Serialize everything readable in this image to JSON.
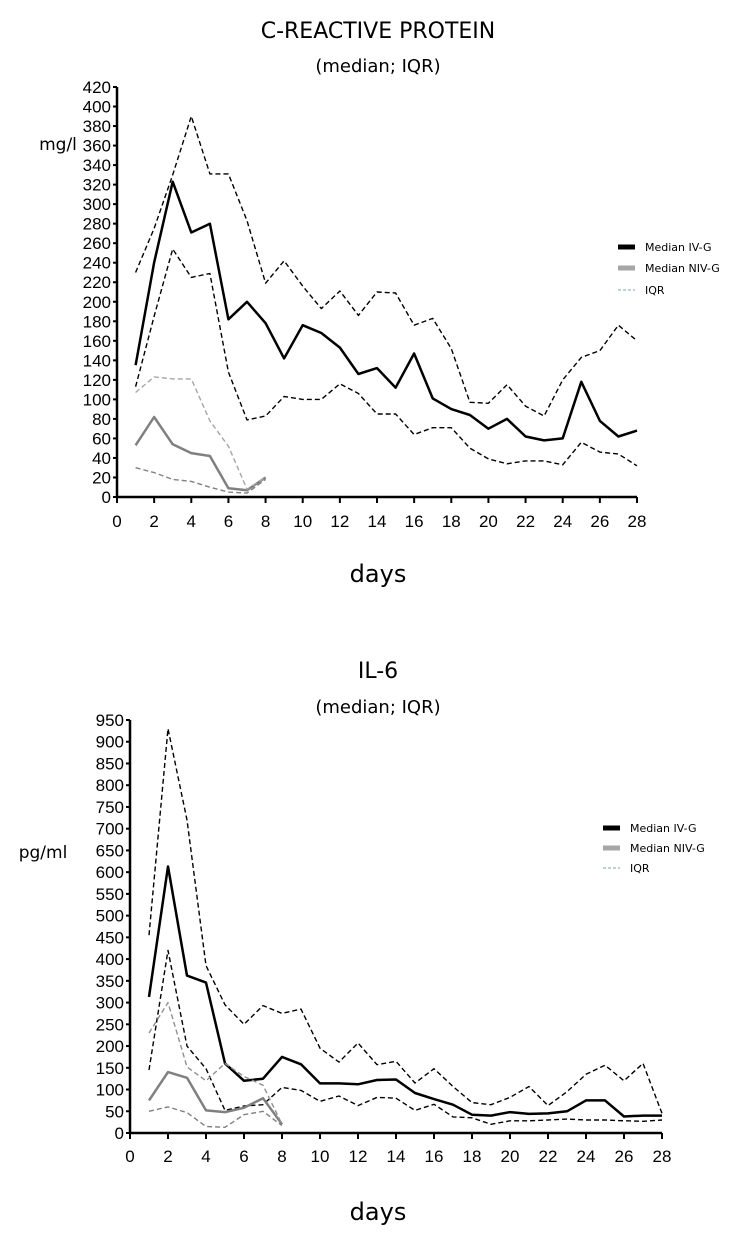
{
  "chart_data": [
    {
      "type": "line",
      "title": "C-REACTIVE PROTEIN",
      "subtitle": "(median; IQR)",
      "xlabel": "days",
      "ylabel": "mg/l",
      "xlim": [
        0,
        28
      ],
      "ylim": [
        0,
        420
      ],
      "xticks": [
        0,
        2,
        4,
        6,
        8,
        10,
        12,
        14,
        16,
        18,
        20,
        22,
        24,
        26,
        28
      ],
      "yticks": [
        0,
        20,
        40,
        60,
        80,
        100,
        120,
        140,
        160,
        180,
        200,
        220,
        240,
        260,
        280,
        300,
        320,
        340,
        360,
        380,
        400,
        420
      ],
      "grid": false,
      "legend_position": "right",
      "legend": [
        "Median IV-G",
        "Median NIV-G",
        "IQR"
      ],
      "series": [
        {
          "name": "Median IV-G",
          "style": "solid",
          "color": "#000000",
          "x": [
            1,
            2,
            3,
            4,
            5,
            6,
            7,
            8,
            9,
            10,
            11,
            12,
            13,
            14,
            15,
            16,
            17,
            18,
            19,
            20,
            21,
            22,
            23,
            24,
            25,
            26,
            27,
            28
          ],
          "values": [
            135,
            240,
            323,
            271,
            280,
            182,
            200,
            178,
            142,
            176,
            168,
            153,
            126,
            132,
            112,
            147,
            101,
            90,
            84,
            70,
            80,
            62,
            58,
            60,
            118,
            78,
            62,
            68
          ]
        },
        {
          "name": "IQR IV-G upper",
          "style": "dashed",
          "color": "#000000",
          "x": [
            1,
            2,
            3,
            4,
            5,
            6,
            7,
            8,
            9,
            10,
            11,
            12,
            13,
            14,
            15,
            16,
            17,
            18,
            19,
            20,
            21,
            22,
            23,
            24,
            25,
            26,
            27,
            28
          ],
          "values": [
            230,
            275,
            330,
            390,
            331,
            331,
            283,
            219,
            242,
            216,
            193,
            211,
            186,
            210,
            209,
            176,
            183,
            152,
            97,
            96,
            115,
            93,
            83,
            120,
            143,
            150,
            176,
            160
          ]
        },
        {
          "name": "IQR IV-G lower",
          "style": "dashed",
          "color": "#000000",
          "x": [
            1,
            2,
            3,
            4,
            5,
            6,
            7,
            8,
            9,
            10,
            11,
            12,
            13,
            14,
            15,
            16,
            17,
            18,
            19,
            20,
            21,
            22,
            23,
            24,
            25,
            26,
            27,
            28
          ],
          "values": [
            113,
            185,
            254,
            225,
            229,
            128,
            79,
            83,
            103,
            100,
            100,
            116,
            106,
            85,
            85,
            64,
            71,
            71,
            50,
            39,
            34,
            37,
            37,
            33,
            56,
            46,
            44,
            32
          ]
        },
        {
          "name": "Median NIV-G",
          "style": "solid",
          "color": "#808080",
          "x": [
            1,
            2,
            3,
            4,
            5,
            6,
            7,
            8
          ],
          "values": [
            53,
            82,
            54,
            45,
            42,
            9,
            7,
            20
          ]
        },
        {
          "name": "IQR NIV-G upper",
          "style": "dashed",
          "color": "#a6a6a6",
          "x": [
            1,
            2,
            3,
            4,
            5,
            6,
            7,
            8
          ],
          "values": [
            107,
            123,
            121,
            121,
            78,
            52,
            8,
            20
          ]
        },
        {
          "name": "IQR NIV-G lower",
          "style": "dashed",
          "color": "#808080",
          "x": [
            1,
            2,
            3,
            4,
            5,
            6,
            7,
            8
          ],
          "values": [
            30,
            25,
            18,
            16,
            10,
            5,
            4,
            18
          ]
        }
      ]
    },
    {
      "type": "line",
      "title": "IL-6",
      "subtitle": "(median; IQR)",
      "xlabel": "days",
      "ylabel": "pg/ml",
      "xlim": [
        0,
        28
      ],
      "ylim": [
        0,
        950
      ],
      "xticks": [
        0,
        2,
        4,
        6,
        8,
        10,
        12,
        14,
        16,
        18,
        20,
        22,
        24,
        26,
        28
      ],
      "yticks": [
        0,
        50,
        100,
        150,
        200,
        250,
        300,
        350,
        400,
        450,
        500,
        550,
        600,
        650,
        700,
        750,
        800,
        850,
        900,
        950
      ],
      "grid": false,
      "legend_position": "right",
      "legend": [
        "Median IV-G",
        "Median NIV-G",
        "IQR"
      ],
      "series": [
        {
          "name": "Median IV-G",
          "style": "solid",
          "color": "#000000",
          "x": [
            1,
            2,
            3,
            4,
            5,
            6,
            7,
            8,
            9,
            10,
            11,
            12,
            13,
            14,
            15,
            16,
            17,
            18,
            19,
            20,
            21,
            22,
            23,
            24,
            25,
            26,
            27,
            28
          ],
          "values": [
            313,
            613,
            362,
            346,
            160,
            120,
            125,
            175,
            158,
            114,
            114,
            112,
            122,
            123,
            92,
            78,
            65,
            42,
            40,
            48,
            44,
            45,
            50,
            75,
            75,
            38,
            40,
            40
          ]
        },
        {
          "name": "IQR IV-G upper",
          "style": "dashed",
          "color": "#000000",
          "x": [
            1,
            2,
            3,
            4,
            5,
            6,
            7,
            8,
            9,
            10,
            11,
            12,
            13,
            14,
            15,
            16,
            17,
            18,
            19,
            20,
            21,
            22,
            23,
            24,
            25,
            26,
            27,
            28
          ],
          "values": [
            455,
            930,
            720,
            385,
            295,
            250,
            293,
            275,
            285,
            195,
            163,
            207,
            157,
            165,
            115,
            148,
            107,
            70,
            65,
            82,
            107,
            63,
            95,
            135,
            156,
            120,
            160,
            45
          ]
        },
        {
          "name": "IQR IV-G lower",
          "style": "dashed",
          "color": "#000000",
          "x": [
            1,
            2,
            3,
            4,
            5,
            6,
            7,
            8,
            9,
            10,
            11,
            12,
            13,
            14,
            15,
            16,
            17,
            18,
            19,
            20,
            21,
            22,
            23,
            24,
            25,
            26,
            27,
            28
          ],
          "values": [
            145,
            420,
            200,
            148,
            52,
            62,
            65,
            105,
            98,
            73,
            85,
            63,
            82,
            80,
            52,
            66,
            37,
            35,
            20,
            28,
            28,
            30,
            32,
            30,
            30,
            28,
            27,
            30
          ]
        },
        {
          "name": "Median NIV-G",
          "style": "solid",
          "color": "#808080",
          "x": [
            1,
            2,
            3,
            4,
            5,
            6,
            7,
            8
          ],
          "values": [
            75,
            140,
            127,
            52,
            48,
            58,
            80,
            20
          ]
        },
        {
          "name": "IQR NIV-G upper",
          "style": "dashed",
          "color": "#909090",
          "x": [
            1,
            2,
            3,
            4,
            5,
            6,
            7,
            8
          ],
          "values": [
            230,
            300,
            152,
            120,
            160,
            130,
            110,
            20
          ]
        },
        {
          "name": "IQR NIV-G lower",
          "style": "dashed",
          "color": "#808080",
          "x": [
            1,
            2,
            3,
            4,
            5,
            6,
            7,
            8
          ],
          "values": [
            50,
            60,
            47,
            15,
            13,
            42,
            50,
            17
          ]
        }
      ]
    }
  ]
}
